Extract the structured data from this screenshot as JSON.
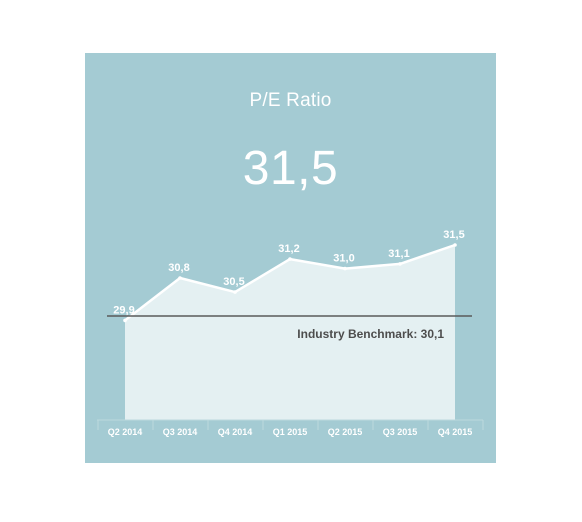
{
  "card": {
    "title": "P/E Ratio",
    "value": "31,5"
  },
  "chart_data": {
    "type": "area",
    "categories": [
      "Q2 2014",
      "Q3 2014",
      "Q4 2014",
      "Q1 2015",
      "Q2 2015",
      "Q3 2015",
      "Q4 2015"
    ],
    "series": [
      {
        "values": [
          29.9,
          30.8,
          30.5,
          31.2,
          31.0,
          31.1,
          31.5
        ],
        "labels": [
          "29,9",
          "30,8",
          "30,5",
          "31,2",
          "31,0",
          "31,1",
          "31,5"
        ]
      }
    ],
    "benchmark": {
      "value": 30.1,
      "label": "Industry Benchmark: 30,1"
    },
    "title": "",
    "xlabel": "",
    "ylabel": "",
    "grid": false,
    "colors": {
      "background": "#a4cbd3",
      "area_fill": "#e4f0f2",
      "line": "#ffffff",
      "benchmark_line": "#5a5a5a",
      "benchmark_text": "#4d4d4d",
      "text": "#ffffff"
    }
  }
}
